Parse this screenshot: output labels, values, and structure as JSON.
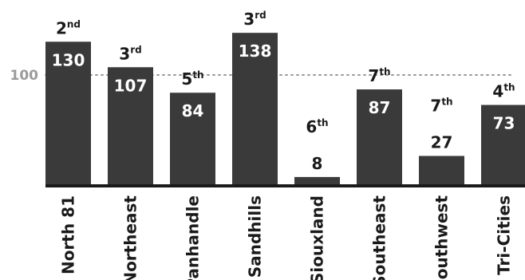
{
  "chart_data": {
    "type": "bar",
    "title": "",
    "xlabel": "",
    "ylabel": "",
    "categories": [
      "North 81",
      "Northeast",
      "Panhandle",
      "Sandhills",
      "Siouxland",
      "Southeast",
      "Southwest",
      "Tri-Cities"
    ],
    "values": [
      130,
      107,
      84,
      138,
      8,
      87,
      27,
      73
    ],
    "ranks": [
      {
        "num": "2",
        "suffix": "nd"
      },
      {
        "num": "3",
        "suffix": "rd"
      },
      {
        "num": "5",
        "suffix": "th"
      },
      {
        "num": "3",
        "suffix": "rd"
      },
      {
        "num": "6",
        "suffix": "th"
      },
      {
        "num": "7",
        "suffix": "th"
      },
      {
        "num": "7",
        "suffix": "th"
      },
      {
        "num": "4",
        "suffix": "th"
      }
    ],
    "reference_line": {
      "value": 100,
      "label": "100",
      "style": "dotted"
    },
    "ylim": [
      0,
      140
    ],
    "grid": false,
    "colors": {
      "bar": "#3a3a3a",
      "value_text": "#ffffff",
      "reference": "#9a9a9a",
      "text": "#1a1a1a"
    }
  }
}
